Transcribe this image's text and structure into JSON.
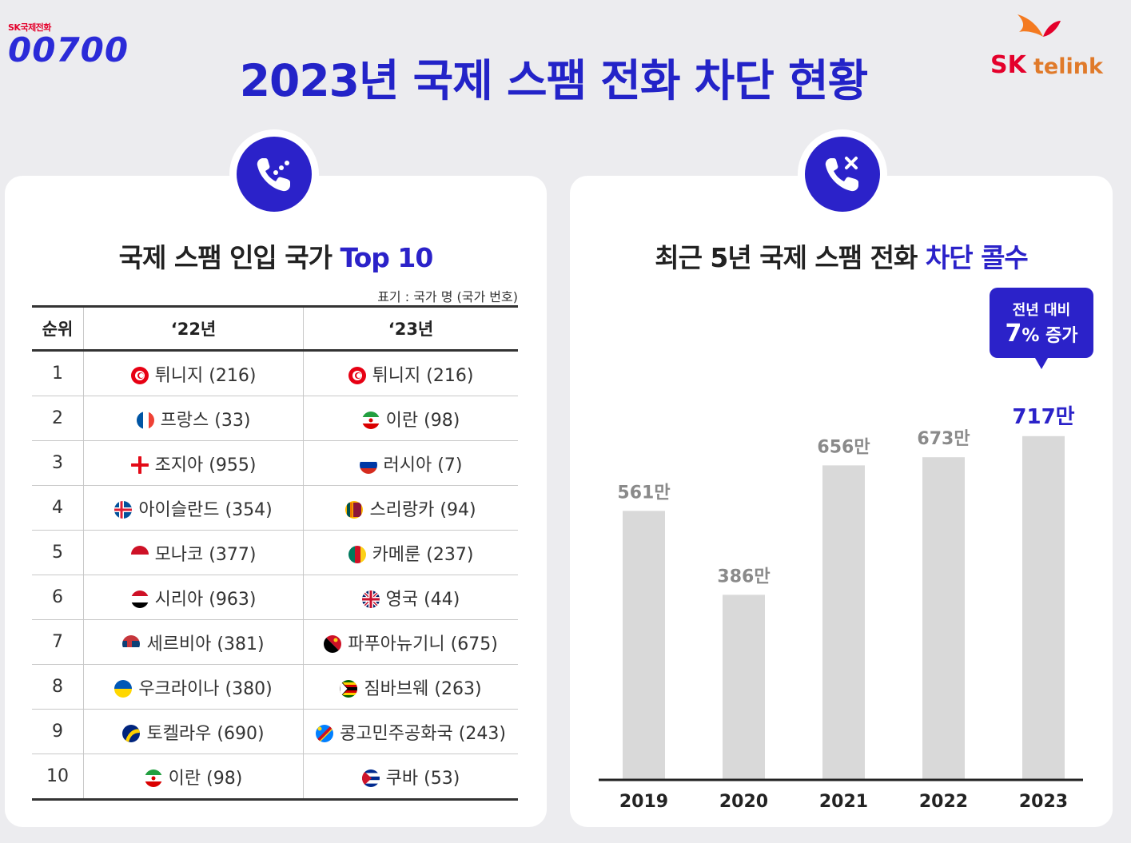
{
  "brand_left": {
    "sub": "SK국제전화",
    "number": "00700"
  },
  "brand_right": {
    "sk": "SK",
    "telink": "telink"
  },
  "title": "2023년 국제 스팸 전화 차단 현황",
  "left_panel": {
    "title_main": "국제 스팸 인입 국가 ",
    "title_highlight": "Top 10",
    "note": "표기 : 국가 명 (국가 번호)",
    "headers": [
      "순위",
      "‘22년",
      "‘23년"
    ],
    "rows": [
      {
        "rank": "1",
        "y22": "튀니지 (216)",
        "f22": "tunisia",
        "y23": "튀니지 (216)",
        "f23": "tunisia"
      },
      {
        "rank": "2",
        "y22": "프랑스 (33)",
        "f22": "france",
        "y23": "이란 (98)",
        "f23": "iran"
      },
      {
        "rank": "3",
        "y22": "조지아 (955)",
        "f22": "georgia",
        "y23": "러시아 (7)",
        "f23": "russia"
      },
      {
        "rank": "4",
        "y22": "아이슬란드 (354)",
        "f22": "iceland",
        "y23": "스리랑카 (94)",
        "f23": "srilanka"
      },
      {
        "rank": "5",
        "y22": "모나코 (377)",
        "f22": "monaco",
        "y23": "카메룬 (237)",
        "f23": "cameroon"
      },
      {
        "rank": "6",
        "y22": "시리아 (963)",
        "f22": "syria",
        "y23": "영국 (44)",
        "f23": "uk"
      },
      {
        "rank": "7",
        "y22": "세르비아 (381)",
        "f22": "serbia",
        "y23": "파푸아뉴기니 (675)",
        "f23": "png"
      },
      {
        "rank": "8",
        "y22": "우크라이나 (380)",
        "f22": "ukraine",
        "y23": "짐바브웨 (263)",
        "f23": "zimbabwe"
      },
      {
        "rank": "9",
        "y22": "토켈라우 (690)",
        "f22": "tokelau",
        "y23": "콩고민주공화국 (243)",
        "f23": "drc"
      },
      {
        "rank": "10",
        "y22": "이란 (98)",
        "f22": "iran",
        "y23": "쿠바 (53)",
        "f23": "cuba"
      }
    ],
    "icon": "phone-dots-icon"
  },
  "right_panel": {
    "title_main": "최근 5년 국제 스팸 전화 ",
    "title_highlight": "차단 콜수",
    "callout_line1": "전년 대비",
    "callout_pct": "7",
    "callout_rest": "% 증가",
    "icon": "phone-blocked-icon"
  },
  "chart_data": {
    "type": "bar",
    "categories": [
      "2019",
      "2020",
      "2021",
      "2022",
      "2023"
    ],
    "values": [
      561,
      386,
      656,
      673,
      717
    ],
    "labels": [
      "561만",
      "386만",
      "656만",
      "673만",
      "717만"
    ],
    "title": "최근 5년 국제 스팸 전화 차단 콜수",
    "ylim": [
      0,
      760
    ],
    "grid": false,
    "highlight_index": 4
  },
  "colors": {
    "accent": "#2b22c9",
    "bar": "#d9d9d9",
    "label": "#8a8a8a",
    "brand_red": "#e4002b"
  }
}
